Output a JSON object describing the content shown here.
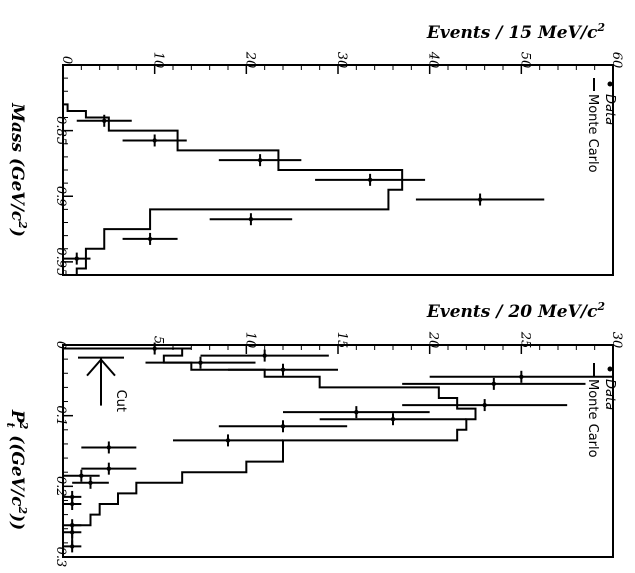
{
  "chart_data": [
    {
      "type": "histogram",
      "id": "mass",
      "ylabel": "Events / 15 MeV/c",
      "ylabel_sup": "2",
      "xlabel_main": "Mass",
      "xlabel_unit": "(GeV/c",
      "xlabel_sup": "2",
      "xlabel_close": ")",
      "xlim": [
        0.8,
        0.96
      ],
      "ylim": [
        0,
        60
      ],
      "x_ticks": [
        "0.85",
        "0.9",
        "0.95"
      ],
      "x_tick_values": [
        0.85,
        0.9,
        0.95
      ],
      "y_ticks": [
        "0",
        "10",
        "20",
        "30",
        "40",
        "50",
        "60"
      ],
      "y_tick_values": [
        0,
        10,
        20,
        30,
        40,
        50,
        60
      ],
      "legend": {
        "data": "Data",
        "mc": "Monte Carlo",
        "position": "top-right"
      },
      "series": [
        {
          "name": "Data",
          "x": [
            0.8425,
            0.8575,
            0.8725,
            0.8875,
            0.9025,
            0.9175,
            0.9325,
            0.9475,
            0.9625
          ],
          "y": [
            4.5,
            10,
            21.5,
            33.5,
            45.5,
            20.5,
            9.5,
            1.5,
            2.5
          ],
          "xerr": [
            3,
            3.5,
            4.5,
            6,
            7,
            4.5,
            3,
            1.5,
            1.5
          ]
        },
        {
          "name": "Monte Carlo",
          "edges": [
            0.83,
            0.835,
            0.84,
            0.85,
            0.865,
            0.88,
            0.895,
            0.91,
            0.925,
            0.94,
            0.955,
            0.97
          ],
          "values": [
            0.5,
            2.5,
            5,
            12.5,
            23.5,
            37,
            35.5,
            9.5,
            4.5,
            2.5,
            1.5
          ]
        }
      ]
    },
    {
      "type": "histogram",
      "id": "pt2",
      "ylabel": "Events / 20 MeV/c",
      "ylabel_sup": "2",
      "xlabel_main": "P",
      "xlabel_sub": "t",
      "xlabel_sup": "2",
      "xlabel_unit": "((GeV/c",
      "xlabel_unit_sup": "2",
      "xlabel_close": "))",
      "xlim": [
        0,
        0.3
      ],
      "ylim": [
        0,
        30
      ],
      "x_ticks": [
        "0",
        "0.1",
        "0.2",
        "0.3"
      ],
      "x_tick_values": [
        0,
        0.1,
        0.2,
        0.3
      ],
      "y_ticks": [
        "5",
        "10",
        "15",
        "20",
        "25",
        "30"
      ],
      "y_tick_values": [
        5,
        10,
        15,
        20,
        25,
        30
      ],
      "cut_label": "Cut",
      "cut_value": 0.015,
      "legend": {
        "data": "Data",
        "mc": "Monte Carlo",
        "position": "top-right"
      },
      "series": [
        {
          "name": "Data",
          "x": [
            0.005,
            0.015,
            0.025,
            0.035,
            0.045,
            0.055,
            0.085,
            0.095,
            0.105,
            0.115,
            0.135,
            0.145,
            0.175,
            0.185,
            0.195,
            0.215,
            0.225,
            0.255,
            0.265,
            0.285
          ],
          "y": [
            5,
            11,
            7.5,
            12,
            25,
            23.5,
            23,
            16,
            18,
            12,
            9,
            2.5,
            2.5,
            1,
            1.5,
            0.5,
            0.5,
            0.5,
            0.5,
            0.5
          ],
          "xerr": [
            2,
            3.5,
            3,
            3,
            5,
            5,
            4.5,
            4,
            4,
            3.5,
            3,
            1.5,
            1.5,
            1,
            1,
            0.5,
            0.5,
            0.5,
            0.5,
            0.5
          ]
        },
        {
          "name": "Monte Carlo",
          "edges": [
            0.005,
            0.015,
            0.025,
            0.035,
            0.045,
            0.06,
            0.075,
            0.09,
            0.105,
            0.12,
            0.135,
            0.15,
            0.165,
            0.18,
            0.195,
            0.21,
            0.225,
            0.24,
            0.255,
            0.27,
            0.285
          ],
          "values": [
            6.5,
            5.5,
            7,
            11,
            14,
            20.5,
            21.5,
            22.5,
            22,
            21.5,
            12,
            12,
            10,
            6.5,
            4,
            3,
            2,
            1.5,
            0.5,
            0.5
          ]
        }
      ]
    }
  ]
}
